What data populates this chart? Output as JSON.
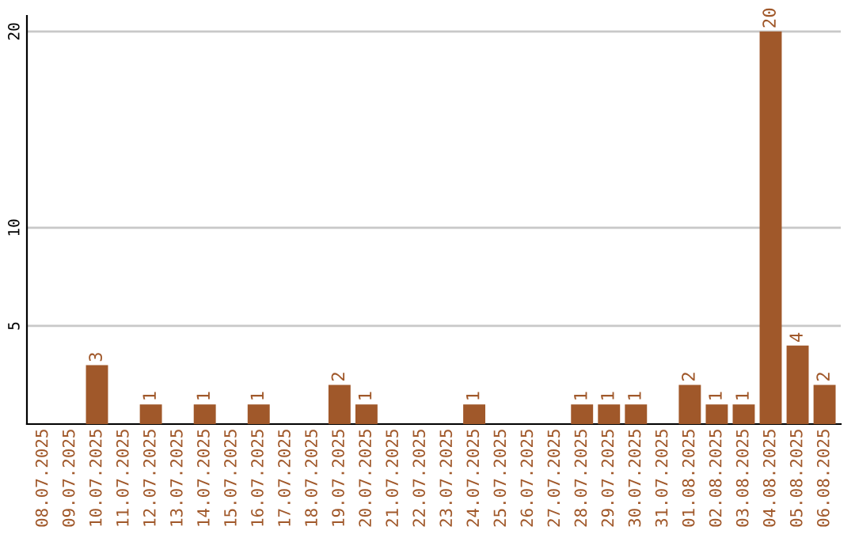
{
  "chart_data": {
    "type": "bar",
    "categories": [
      "08.07.2025",
      "09.07.2025",
      "10.07.2025",
      "11.07.2025",
      "12.07.2025",
      "13.07.2025",
      "14.07.2025",
      "15.07.2025",
      "16.07.2025",
      "17.07.2025",
      "18.07.2025",
      "19.07.2025",
      "20.07.2025",
      "21.07.2025",
      "22.07.2025",
      "23.07.2025",
      "24.07.2025",
      "25.07.2025",
      "26.07.2025",
      "27.07.2025",
      "28.07.2025",
      "29.07.2025",
      "30.07.2025",
      "31.07.2025",
      "01.08.2025",
      "02.08.2025",
      "03.08.2025",
      "04.08.2025",
      "05.08.2025",
      "06.08.2025"
    ],
    "values": [
      0,
      0,
      3,
      0,
      1,
      0,
      1,
      0,
      1,
      0,
      0,
      2,
      1,
      0,
      0,
      0,
      1,
      0,
      0,
      0,
      1,
      1,
      1,
      0,
      2,
      1,
      1,
      20,
      4,
      2
    ],
    "value_labels": [
      null,
      null,
      "3",
      null,
      "1",
      null,
      "1",
      null,
      "1",
      null,
      null,
      "2",
      "1",
      null,
      null,
      null,
      "1",
      null,
      null,
      null,
      "1",
      "1",
      "1",
      null,
      "2",
      "1",
      "1",
      "20",
      "4",
      "2"
    ],
    "color": "#a0582a",
    "ylim": [
      0,
      20.8
    ],
    "yticks": [
      5,
      10,
      20
    ],
    "grid": "y",
    "legend": false
  }
}
